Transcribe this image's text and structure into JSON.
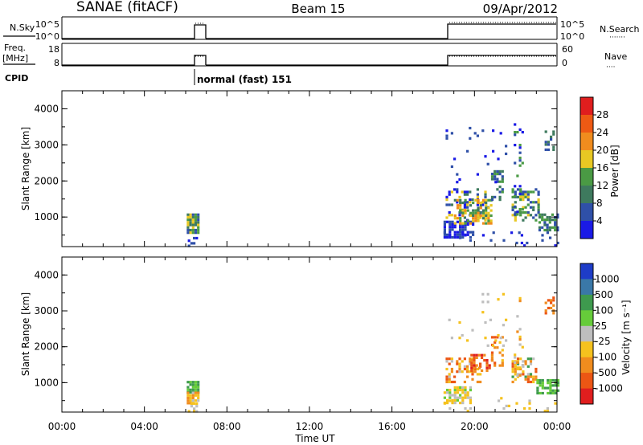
{
  "header": {
    "title": "SANAE (fitACF)",
    "beam": "Beam 15",
    "date": "09/Apr/2012"
  },
  "chart_data": [
    {
      "type": "line",
      "panel": "N.Sky / N.Search",
      "left_label": "N.Sky",
      "right_label": "N.Search",
      "left_ticks": [
        "10^5",
        "10^0"
      ],
      "right_ticks": [
        "10^5",
        "10^0"
      ],
      "x_range_hours": [
        0,
        24
      ],
      "series": [
        {
          "segments": [
            {
              "start": 6.0,
              "end": 6.6,
              "level": "10^5"
            },
            {
              "start": 18.6,
              "end": 24.0,
              "level": "10^5"
            }
          ]
        }
      ]
    },
    {
      "type": "line",
      "panel": "Freq. / Nave",
      "left_label": "Freq.",
      "left_unit": "[MHz]",
      "right_label": "Nave",
      "left_ticks": [
        "18",
        "8"
      ],
      "right_ticks": [
        "60",
        "0"
      ],
      "x_range_hours": [
        0,
        24
      ],
      "series": [
        {
          "segments": [
            {
              "start": 6.0,
              "end": 6.6,
              "value": 12
            },
            {
              "start": 18.6,
              "end": 24.0,
              "value": 12
            }
          ]
        }
      ]
    },
    {
      "type": "table",
      "panel": "CPID",
      "label": "CPID",
      "mode_text": "normal (fast) 151",
      "mode_start_hours": 6.0
    },
    {
      "type": "heatmap",
      "panel": "power",
      "ylabel": "Slant Range [km]",
      "ylim": [
        180,
        4500
      ],
      "yticks": [
        1000,
        2000,
        3000,
        4000
      ],
      "x_range_hours": [
        0,
        24
      ],
      "colorbar_label": "Power [dB]",
      "colorbar_ticks": [
        "4",
        "8",
        "12",
        "16",
        "20",
        "24",
        "28"
      ],
      "colors": [
        "#1a1ae6",
        "#2f50a8",
        "#3e7a5e",
        "#4a9a44",
        "#e8c823",
        "#f08c1e",
        "#ee5a14",
        "#e01e1e"
      ],
      "clusters": [
        {
          "t0": 6.05,
          "t1": 6.55,
          "r0": 550,
          "r1": 1100,
          "lvl": [
            1,
            2,
            3,
            4
          ],
          "d": 0.9
        },
        {
          "t0": 6.1,
          "t1": 6.5,
          "r0": 200,
          "r1": 450,
          "lvl": [
            0,
            1
          ],
          "d": 0.5
        },
        {
          "t0": 18.5,
          "t1": 19.9,
          "r0": 450,
          "r1": 900,
          "lvl": [
            0,
            1
          ],
          "d": 0.7
        },
        {
          "t0": 18.6,
          "t1": 20.6,
          "r0": 900,
          "r1": 1800,
          "lvl": [
            0,
            1,
            2,
            4
          ],
          "d": 0.3
        },
        {
          "t0": 19.0,
          "t1": 20.8,
          "r0": 850,
          "r1": 1500,
          "lvl": [
            2,
            3,
            4,
            5
          ],
          "d": 0.55
        },
        {
          "t0": 20.8,
          "t1": 21.3,
          "r0": 1500,
          "r1": 2300,
          "lvl": [
            1,
            2,
            3
          ],
          "d": 0.4
        },
        {
          "t0": 21.8,
          "t1": 23.1,
          "r0": 900,
          "r1": 1800,
          "lvl": [
            1,
            2,
            3,
            4
          ],
          "d": 0.5
        },
        {
          "t0": 23.1,
          "t1": 24.0,
          "r0": 650,
          "r1": 1100,
          "lvl": [
            1,
            2,
            3
          ],
          "d": 0.65
        },
        {
          "t0": 21.9,
          "t1": 22.3,
          "r0": 1000,
          "r1": 3600,
          "lvl": [
            0,
            1,
            3
          ],
          "d": 0.15
        },
        {
          "t0": 23.4,
          "t1": 23.8,
          "r0": 2900,
          "r1": 3400,
          "lvl": [
            1,
            2
          ],
          "d": 0.35
        },
        {
          "t0": 18.5,
          "t1": 24.0,
          "r0": 200,
          "r1": 600,
          "lvl": [
            0,
            1
          ],
          "d": 0.08
        },
        {
          "t0": 18.6,
          "t1": 21.5,
          "r0": 2000,
          "r1": 3500,
          "lvl": [
            0,
            1
          ],
          "d": 0.04
        }
      ]
    },
    {
      "type": "heatmap",
      "panel": "velocity",
      "ylabel": "Slant Range [km]",
      "ylim": [
        180,
        4500
      ],
      "yticks": [
        1000,
        2000,
        3000,
        4000
      ],
      "x_range_hours": [
        0,
        24
      ],
      "xticks": [
        "00:00",
        "04:00",
        "08:00",
        "12:00",
        "16:00",
        "20:00",
        "00:00"
      ],
      "xlabel": "Time UT",
      "colorbar_label": "Velocity [m s⁻¹]",
      "colorbar_ticks": [
        "1000",
        "500",
        "100",
        "25",
        "-25",
        "-100",
        "-500",
        "-1000"
      ],
      "colors": [
        "#1e3cc8",
        "#3a78a8",
        "#3e9a4e",
        "#66cc3a",
        "#bebebe",
        "#f5c21e",
        "#f08c1e",
        "#ec5614",
        "#e01e1e"
      ],
      "clusters": [
        {
          "t0": 6.05,
          "t1": 6.55,
          "r0": 750,
          "r1": 1050,
          "lvl": [
            2,
            3
          ],
          "d": 0.9
        },
        {
          "t0": 6.05,
          "t1": 6.55,
          "r0": 450,
          "r1": 750,
          "lvl": [
            4,
            5,
            6
          ],
          "d": 0.9
        },
        {
          "t0": 6.1,
          "t1": 6.5,
          "r0": 200,
          "r1": 450,
          "lvl": [
            4,
            5
          ],
          "d": 0.5
        },
        {
          "t0": 18.5,
          "t1": 19.8,
          "r0": 450,
          "r1": 900,
          "lvl": [
            3,
            4,
            5
          ],
          "d": 0.7
        },
        {
          "t0": 18.6,
          "t1": 20.3,
          "r0": 1000,
          "r1": 1700,
          "lvl": [
            4,
            5,
            6,
            7
          ],
          "d": 0.4
        },
        {
          "t0": 19.8,
          "t1": 20.9,
          "r0": 1300,
          "r1": 1800,
          "lvl": [
            6,
            7,
            8
          ],
          "d": 0.6
        },
        {
          "t0": 20.8,
          "t1": 21.3,
          "r0": 1500,
          "r1": 2300,
          "lvl": [
            5,
            6,
            7
          ],
          "d": 0.4
        },
        {
          "t0": 21.8,
          "t1": 23.0,
          "r0": 1000,
          "r1": 1700,
          "lvl": [
            2,
            4,
            5,
            6,
            7
          ],
          "d": 0.5
        },
        {
          "t0": 23.0,
          "t1": 24.0,
          "r0": 700,
          "r1": 1100,
          "lvl": [
            2,
            3
          ],
          "d": 0.65
        },
        {
          "t0": 21.9,
          "t1": 22.3,
          "r0": 1000,
          "r1": 3600,
          "lvl": [
            4,
            5,
            6
          ],
          "d": 0.15
        },
        {
          "t0": 23.4,
          "t1": 23.8,
          "r0": 2900,
          "r1": 3400,
          "lvl": [
            6,
            7
          ],
          "d": 0.35
        },
        {
          "t0": 18.5,
          "t1": 24.0,
          "r0": 200,
          "r1": 600,
          "lvl": [
            4,
            5
          ],
          "d": 0.08
        },
        {
          "t0": 18.6,
          "t1": 21.5,
          "r0": 2000,
          "r1": 3500,
          "lvl": [
            4,
            5
          ],
          "d": 0.04
        }
      ]
    }
  ]
}
